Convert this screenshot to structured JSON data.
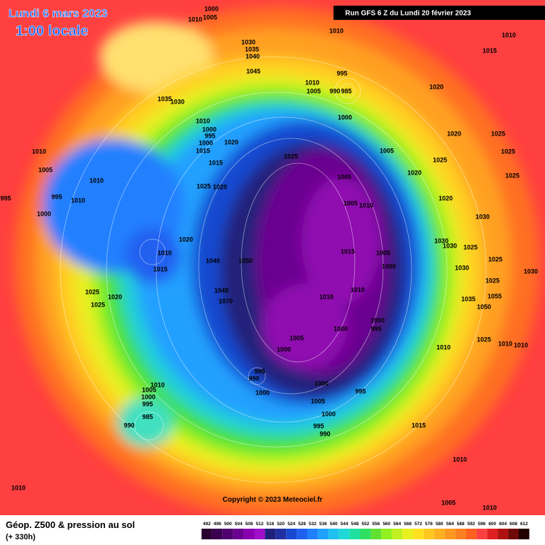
{
  "header": {
    "date": "Lundi 6 mars 2023",
    "time": "1:00 locale",
    "run": "Run GFS 6 Z du Lundi 20 février 2023"
  },
  "footer": {
    "title": "Géop. Z500 & pression au sol",
    "subtitle": "(+ 330h)",
    "copyright": "Copyright © 2023 Meteociel.fr"
  },
  "scale": {
    "values": [
      492,
      496,
      500,
      504,
      508,
      512,
      516,
      520,
      524,
      528,
      532,
      536,
      540,
      544,
      548,
      552,
      556,
      560,
      564,
      568,
      572,
      576,
      580,
      584,
      588,
      592,
      596,
      600,
      604,
      608,
      612
    ],
    "colors": [
      "#2a0030",
      "#3c0050",
      "#500070",
      "#6a0090",
      "#8a00b0",
      "#a010c8",
      "#20207a",
      "#2030a0",
      "#1848d0",
      "#2060f0",
      "#2080ff",
      "#20a0ff",
      "#20c0f0",
      "#20d8d8",
      "#20e0a0",
      "#30e060",
      "#60e030",
      "#90f020",
      "#c0f020",
      "#e8f020",
      "#ffe020",
      "#ffc820",
      "#ffb020",
      "#ff9820",
      "#ff8020",
      "#ff6020",
      "#ff4040",
      "#e02020",
      "#b01010",
      "#700808",
      "#200000"
    ]
  },
  "pressure_labels": [
    1000,
    1005,
    1010,
    1010,
    1010,
    1015,
    1030,
    1035,
    1040,
    1045,
    1035,
    1030,
    995,
    990,
    985,
    1010,
    1005,
    1000,
    1020,
    1010,
    1000,
    995,
    1000,
    1015,
    1020,
    1015,
    1025,
    1005,
    1020,
    1025,
    1025,
    1020,
    1025,
    1005,
    1010,
    1005,
    1010,
    995,
    995,
    1010,
    1000,
    1025,
    1020,
    1020,
    1005,
    1010,
    1025,
    1030,
    1020,
    1010,
    1015,
    1040,
    1050,
    1015,
    1005,
    1000,
    1030,
    1030,
    1025,
    1025,
    1030,
    1025,
    1030,
    1045,
    1070,
    1010,
    1010,
    1025,
    1020,
    1025,
    1035,
    1055,
    1050,
    1000,
    995,
    1000,
    1005,
    1000,
    1010,
    1025,
    1010,
    1010,
    995,
    990,
    1000,
    1000,
    995,
    1005,
    1000,
    995,
    990,
    1010,
    1005,
    1000,
    995,
    985,
    990,
    1015,
    1010,
    1010,
    1010,
    1005
  ]
}
